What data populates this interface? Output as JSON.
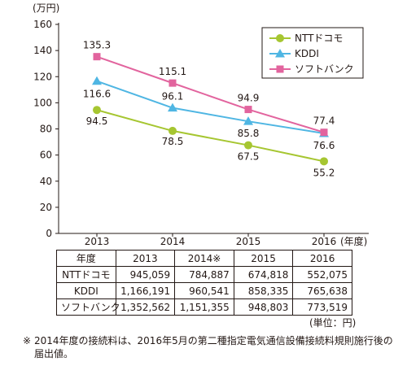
{
  "chart_data": {
    "type": "line",
    "y_unit": "(万円)",
    "x_unit": "(年度)",
    "categories": [
      "2013",
      "2014",
      "2015",
      "2016"
    ],
    "ylim": [
      0,
      160
    ],
    "yticks": [
      0,
      20,
      40,
      60,
      80,
      100,
      120,
      140,
      160
    ],
    "grid": false,
    "legend_position": "top-right",
    "series": [
      {
        "name": "NTTドコモ",
        "marker": "circle",
        "color": "#a6c631",
        "values": [
          94.5,
          78.5,
          67.5,
          55.2
        ],
        "labels": [
          "94.5",
          "78.5",
          "67.5",
          "55.2"
        ]
      },
      {
        "name": "KDDI",
        "marker": "triangle",
        "color": "#4fb6e3",
        "values": [
          116.6,
          96.1,
          85.8,
          76.6
        ],
        "labels": [
          "116.6",
          "96.1",
          "85.8",
          "76.6"
        ]
      },
      {
        "name": "ソフトバンク",
        "marker": "square",
        "color": "#e2649e",
        "values": [
          135.3,
          115.1,
          94.9,
          77.4
        ],
        "labels": [
          "135.3",
          "115.1",
          "94.9",
          "77.4"
        ]
      }
    ]
  },
  "table": {
    "header": [
      "年度",
      "2013",
      "2014※",
      "2015",
      "2016"
    ],
    "rows": [
      [
        "NTTドコモ",
        "945,059",
        "784,887",
        "674,818",
        "552,075"
      ],
      [
        "KDDI",
        "1,166,191",
        "960,541",
        "858,335",
        "765,638"
      ],
      [
        "ソフトバンク",
        "1,352,562",
        "1,151,355",
        "948,803",
        "773,519"
      ]
    ],
    "unit": "(単位：円)"
  },
  "footnote": {
    "mark": "※",
    "text": "2014年度の接続料は、2016年5月の第二種指定電気通信設備接続料規則施行後の届出値。"
  }
}
